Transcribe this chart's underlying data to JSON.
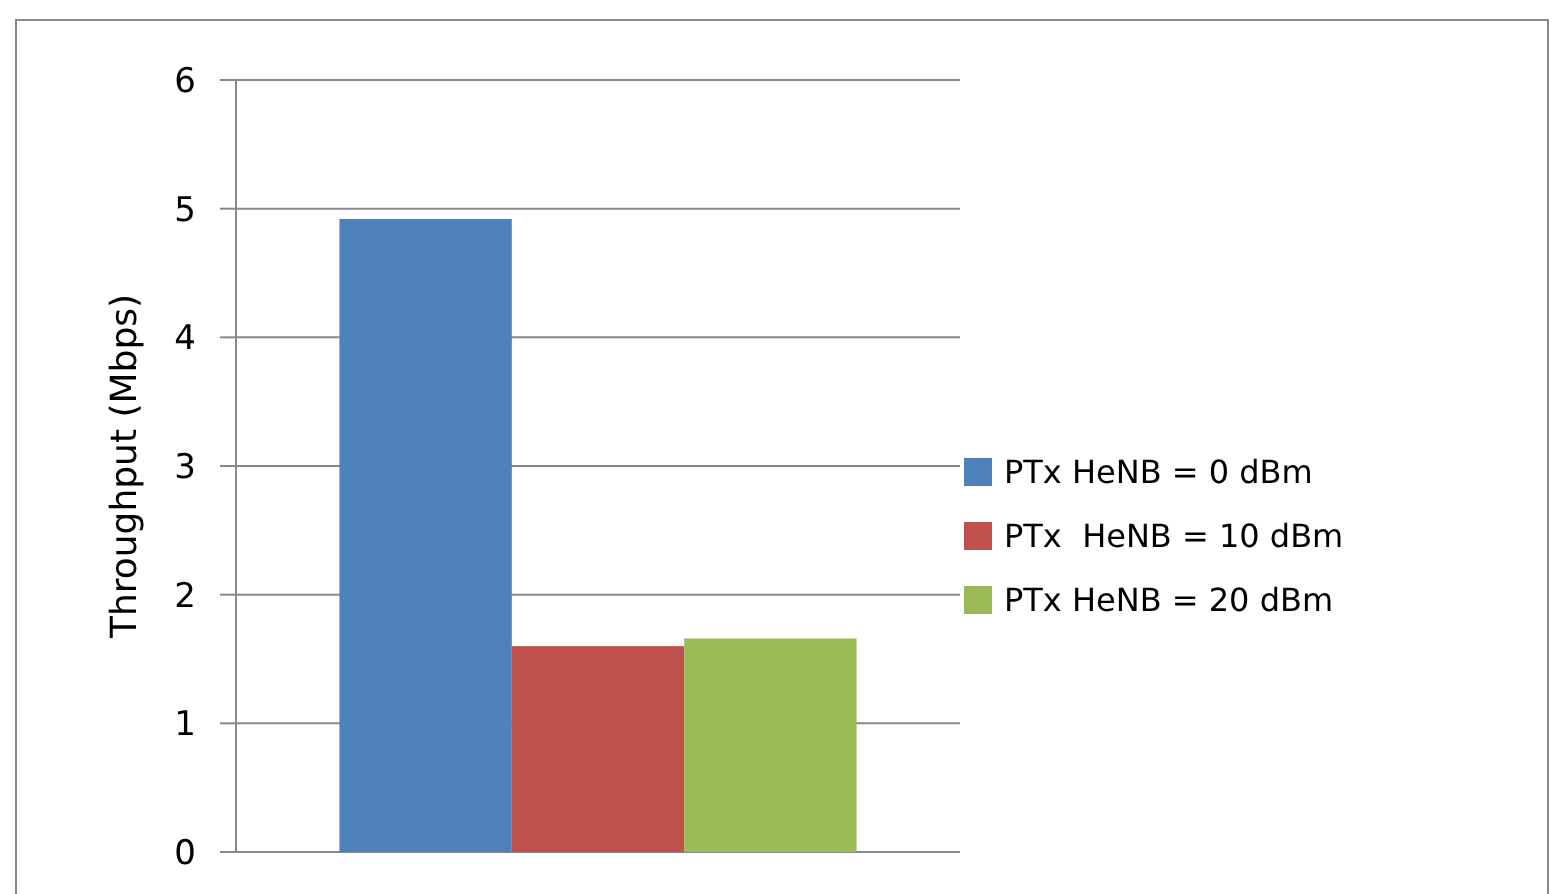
{
  "chart_data": {
    "type": "bar",
    "categories": [
      null
    ],
    "ylabel": "Throughput (Mbps)",
    "series": [
      {
        "name": "PTx HeNB = 0 dBm",
        "color": "#4f81bd",
        "values": [
          4.92
        ]
      },
      {
        "name": "PTx  HeNB = 10 dBm",
        "color": "#c0504d",
        "values": [
          1.6
        ]
      },
      {
        "name": "PTx HeNB = 20 dBm",
        "color": "#9bbb59",
        "values": [
          1.66
        ]
      }
    ],
    "ylim": [
      0,
      6
    ],
    "yticks": [
      0,
      1,
      2,
      3,
      4,
      5,
      6
    ],
    "grid": "y",
    "legend": "right"
  }
}
